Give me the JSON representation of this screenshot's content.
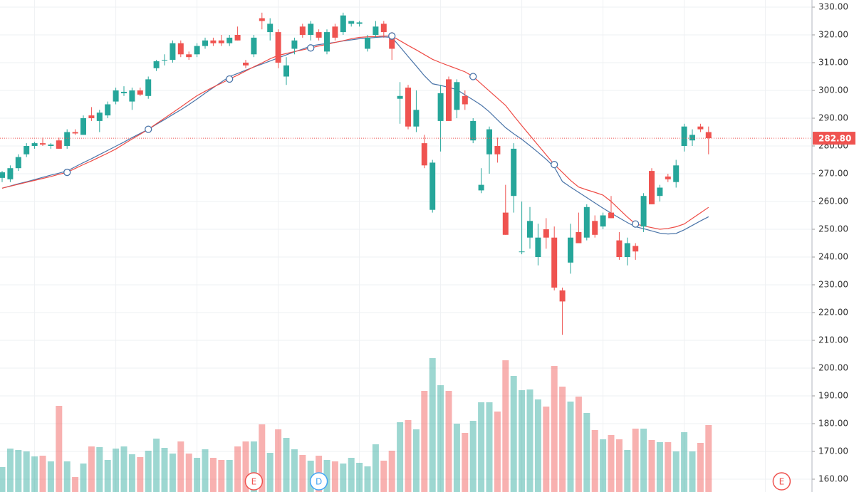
{
  "chart_data": {
    "type": "candlestick",
    "open": [
      268.5,
      268,
      272,
      277,
      280,
      281,
      280,
      282,
      280,
      285,
      284,
      291,
      289,
      291,
      296,
      299,
      296,
      300,
      298,
      308,
      311,
      311,
      317,
      313,
      313,
      316,
      318,
      318,
      317,
      320,
      310,
      313,
      326,
      321,
      321,
      305,
      315,
      323,
      320,
      321,
      314,
      323,
      321,
      324,
      324,
      315,
      320,
      324,
      320,
      297,
      301,
      287,
      281,
      257,
      289,
      304,
      293,
      298,
      282,
      264,
      277,
      280,
      256,
      262,
      242,
      247,
      240,
      250,
      247,
      228,
      238,
      249,
      247,
      253,
      251,
      256,
      246,
      240,
      244,
      251,
      271,
      262,
      269,
      267,
      280,
      282,
      287,
      285
    ],
    "high": [
      271,
      273,
      277,
      281,
      281.5,
      283,
      281,
      283,
      286,
      286,
      291,
      294,
      293,
      296,
      301,
      301.5,
      301,
      301,
      305,
      311,
      313,
      318,
      318,
      314,
      317,
      319,
      319,
      320,
      320,
      323,
      311,
      320,
      328,
      326,
      322,
      312,
      319,
      324,
      325,
      322,
      322,
      324,
      328,
      325,
      325,
      320,
      325,
      325,
      321,
      303,
      302,
      300,
      284,
      275,
      302,
      305,
      304,
      300,
      290,
      272,
      287,
      283,
      266,
      281,
      260,
      258,
      252,
      254,
      251,
      229,
      252,
      256,
      259,
      255,
      256,
      262,
      249,
      247,
      245,
      263,
      272,
      266,
      270,
      275,
      288,
      286,
      288,
      287
    ],
    "low": [
      267,
      267,
      271,
      276,
      279,
      280,
      279,
      279,
      279,
      284,
      284,
      289,
      285,
      290,
      295,
      298,
      293,
      298,
      297,
      307,
      309,
      310,
      312,
      311,
      312,
      315,
      316,
      316,
      316,
      318,
      308,
      312,
      322,
      318,
      308,
      302,
      313,
      319,
      318,
      318,
      313,
      318,
      320,
      323,
      323,
      314,
      319,
      319,
      311,
      288,
      286,
      285,
      272,
      256,
      278,
      289,
      290,
      293,
      281,
      263,
      270,
      274,
      248,
      256,
      241,
      243,
      237,
      243,
      228,
      212,
      234,
      245,
      246,
      247,
      250,
      254,
      239,
      237,
      239,
      249,
      259,
      260,
      267,
      265,
      278,
      280,
      285,
      277
    ],
    "close": [
      270.5,
      272,
      276,
      280,
      281,
      280.5,
      280.5,
      279,
      285,
      284.5,
      290,
      290,
      292,
      295,
      300,
      299.5,
      300,
      298.5,
      304,
      310.5,
      311,
      317,
      313,
      312,
      316,
      318,
      317,
      317,
      319,
      318,
      309,
      319,
      325,
      324,
      310,
      309,
      318,
      320,
      324,
      319,
      321,
      319,
      327,
      325,
      324.5,
      319,
      323,
      321,
      315,
      298,
      287,
      293,
      273,
      274,
      299,
      289,
      303,
      295,
      289,
      266,
      286,
      277,
      248,
      279,
      242,
      253,
      247,
      247,
      229,
      224,
      247,
      245,
      258,
      248,
      255,
      254,
      240,
      245,
      242,
      262,
      259,
      265,
      268,
      273,
      287,
      284,
      286,
      282.8
    ],
    "volume": [
      35,
      61,
      59,
      57,
      50,
      51,
      43,
      121,
      43,
      21,
      40,
      64,
      63,
      45,
      61,
      64,
      53,
      49,
      58,
      75,
      62,
      54,
      71,
      54,
      48,
      60,
      48,
      45,
      45,
      64,
      71,
      71,
      95,
      55,
      88,
      76,
      60,
      52,
      44,
      51,
      45,
      43,
      40,
      48,
      41,
      36,
      67,
      44,
      58,
      98,
      101,
      88,
      142,
      188,
      150,
      142,
      96,
      83,
      100,
      126,
      126,
      113,
      185,
      163,
      143,
      144,
      130,
      120,
      177,
      148,
      127,
      134,
      111,
      87,
      74,
      80,
      74,
      59,
      89,
      89,
      73,
      70,
      70,
      57,
      84,
      57,
      69,
      94
    ],
    "volume_ylim": [
      0,
      200
    ],
    "up_color": "#26a69a",
    "down_color": "#ef5350",
    "lines": [
      {
        "color": "#4a74a8",
        "values": [
          264.8,
          265.6,
          266.4,
          267.1,
          267.9,
          268.7,
          269.5,
          270.2,
          271.0,
          272.5,
          274.0,
          275.4,
          276.9,
          278.4,
          279.9,
          281.4,
          283.0,
          284.5,
          286.0,
          287.8,
          289.5,
          291.3,
          293.0,
          294.9,
          296.9,
          299.0,
          301.0,
          303.0,
          305.0,
          306.1,
          307.3,
          308.4,
          309.5,
          310.6,
          311.7,
          312.8,
          313.9,
          314.9,
          316.0,
          316.5,
          316.9,
          317.3,
          317.8,
          318.2,
          318.6,
          318.8,
          319.1,
          319.3,
          319.1,
          315.7,
          312.2,
          308.8,
          305.3,
          302.4,
          301.8,
          301.1,
          300.3,
          298.4,
          296.6,
          294.7,
          292.3,
          289.4,
          286.6,
          284.4,
          282.4,
          280.1,
          277.7,
          275.2,
          272.4,
          267.2,
          265.2,
          263.3,
          261.4,
          259.5,
          257.6,
          255.8,
          254.1,
          252.4,
          250.9,
          250.2,
          249.4,
          248.6,
          248.3,
          248.5,
          249.8,
          251.4,
          253.0,
          254.5
        ]
      },
      {
        "color": "#ee4b45",
        "values": [
          264.8,
          265.5,
          266.2,
          266.9,
          267.6,
          268.3,
          269.0,
          269.8,
          270.5,
          271.9,
          273.3,
          274.6,
          276.0,
          277.4,
          278.9,
          280.7,
          282.5,
          284.2,
          286.0,
          288.0,
          290.0,
          292.0,
          294.0,
          296.1,
          298.1,
          299.7,
          301.2,
          302.6,
          304.1,
          305.5,
          307.0,
          308.5,
          309.9,
          311.4,
          312.6,
          313.3,
          314.0,
          314.6,
          315.3,
          316.0,
          316.6,
          317.3,
          317.9,
          318.6,
          319.1,
          319.3,
          319.4,
          319.6,
          319.6,
          317.9,
          316.2,
          314.6,
          312.9,
          311.2,
          310.0,
          308.9,
          307.8,
          306.7,
          305.0,
          302.4,
          299.8,
          297.2,
          294.6,
          290.9,
          287.3,
          283.8,
          280.3,
          276.8,
          273.3,
          270.5,
          267.6,
          265.2,
          264.2,
          263.3,
          262.3,
          260.0,
          257.2,
          254.4,
          251.9,
          251.2,
          250.6,
          250.0,
          250.3,
          250.9,
          251.9,
          253.9,
          255.9,
          257.9
        ]
      }
    ],
    "line_markers": {
      "line": 1,
      "indices": [
        8,
        18,
        28,
        38,
        48,
        58,
        68,
        78
      ]
    },
    "ylim": [
      160,
      330
    ],
    "yticks": [
      {
        "value": 160,
        "label": "160.00"
      },
      {
        "value": 170,
        "label": "170.00"
      },
      {
        "value": 180,
        "label": "180.00"
      },
      {
        "value": 190,
        "label": "190.00"
      },
      {
        "value": 200,
        "label": "200.00"
      },
      {
        "value": 210,
        "label": "210.00"
      },
      {
        "value": 220,
        "label": "220.00"
      },
      {
        "value": 230,
        "label": "230.00"
      },
      {
        "value": 240,
        "label": "240.00"
      },
      {
        "value": 250,
        "label": "250.00"
      },
      {
        "value": 260,
        "label": "260.00"
      },
      {
        "value": 270,
        "label": "270.00"
      },
      {
        "value": 280,
        "label": "280.00"
      },
      {
        "value": 290,
        "label": "290.00"
      },
      {
        "value": 300,
        "label": "300.00"
      },
      {
        "value": 310,
        "label": "310.00"
      },
      {
        "value": 320,
        "label": "320.00"
      },
      {
        "value": 330,
        "label": "330.00"
      }
    ],
    "last_price": {
      "value": 282.8,
      "label": "282.80"
    },
    "events": [
      {
        "label": "E",
        "index": 31,
        "color": "#ef5350"
      },
      {
        "label": "D",
        "index": 39,
        "color": "#42a5f5"
      },
      {
        "label": "E",
        "index": 96,
        "color": "#ef5350"
      }
    ],
    "grid": true
  }
}
